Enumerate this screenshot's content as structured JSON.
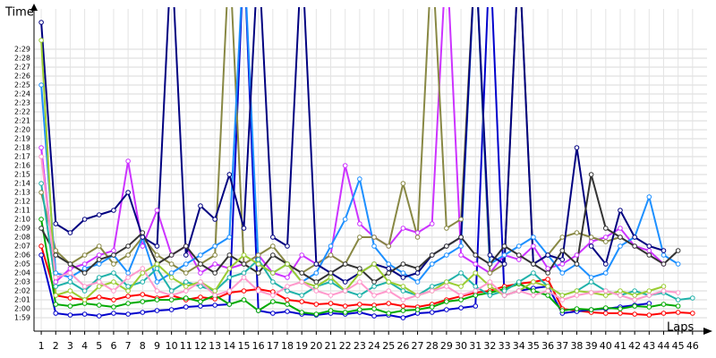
{
  "chart_data": {
    "type": "line",
    "x_label": "Laps",
    "y_label": "Time",
    "grid": true,
    "xlim": [
      0.5,
      47
    ],
    "ylim": [
      117.5,
      153.5
    ],
    "x": [
      1,
      2,
      3,
      4,
      5,
      6,
      7,
      8,
      9,
      10,
      11,
      12,
      13,
      14,
      15,
      16,
      17,
      18,
      19,
      20,
      21,
      22,
      23,
      24,
      25,
      26,
      27,
      28,
      29,
      30,
      31,
      32,
      33,
      34,
      35,
      36,
      37,
      38,
      39,
      40,
      41,
      42,
      43,
      44,
      45,
      46
    ],
    "xticks": [
      1,
      2,
      3,
      4,
      5,
      6,
      7,
      8,
      9,
      10,
      11,
      12,
      13,
      14,
      15,
      16,
      17,
      18,
      19,
      20,
      21,
      22,
      23,
      24,
      25,
      26,
      27,
      28,
      29,
      30,
      31,
      32,
      33,
      34,
      35,
      36,
      37,
      38,
      39,
      40,
      41,
      42,
      43,
      44,
      45,
      46
    ],
    "yticks": [
      {
        "value": 119,
        "label": "1:59"
      },
      {
        "value": 120,
        "label": "2:00"
      },
      {
        "value": 121,
        "label": "2:01"
      },
      {
        "value": 122,
        "label": "2:02"
      },
      {
        "value": 123,
        "label": "2:03"
      },
      {
        "value": 124,
        "label": "2:04"
      },
      {
        "value": 125,
        "label": "2:05"
      },
      {
        "value": 126,
        "label": "2:06"
      },
      {
        "value": 127,
        "label": "2:07"
      },
      {
        "value": 128,
        "label": "2:08"
      },
      {
        "value": 129,
        "label": "2:09"
      },
      {
        "value": 130,
        "label": "2:10"
      },
      {
        "value": 131,
        "label": "2:11"
      },
      {
        "value": 132,
        "label": "2:12"
      },
      {
        "value": 133,
        "label": "2:13"
      },
      {
        "value": 134,
        "label": "2:14"
      },
      {
        "value": 135,
        "label": "2:15"
      },
      {
        "value": 136,
        "label": "2:16"
      },
      {
        "value": 137,
        "label": "2:17"
      },
      {
        "value": 138,
        "label": "2:18"
      },
      {
        "value": 139,
        "label": "2:19"
      },
      {
        "value": 140,
        "label": "2:20"
      },
      {
        "value": 141,
        "label": "2:21"
      },
      {
        "value": 142,
        "label": "2:22"
      },
      {
        "value": 143,
        "label": "2:23"
      },
      {
        "value": 144,
        "label": "2:24"
      },
      {
        "value": 145,
        "label": "2:25"
      },
      {
        "value": 146,
        "label": "2:26"
      },
      {
        "value": 147,
        "label": "2:27"
      },
      {
        "value": 148,
        "label": "2:28"
      },
      {
        "value": 149,
        "label": "2:29"
      }
    ],
    "series": [
      {
        "color": "#ff0000",
        "values": [
          127.0,
          121.5,
          121.2,
          121.0,
          121.3,
          121.0,
          121.4,
          121.6,
          121.2,
          121.5,
          121.0,
          121.3,
          121.1,
          121.8,
          122.0,
          122.2,
          121.9,
          121.0,
          120.8,
          120.5,
          120.6,
          120.3,
          120.5,
          120.4,
          120.6,
          120.3,
          120.2,
          120.5,
          121.0,
          121.4,
          121.8,
          122.0,
          122.5,
          122.8,
          123.0,
          123.3,
          120.0,
          119.8,
          119.6,
          119.5,
          119.5,
          119.4,
          119.3,
          119.5,
          119.6,
          119.5
        ]
      },
      {
        "color": "#0000cc",
        "values": [
          126.0,
          119.5,
          119.3,
          119.4,
          119.2,
          119.5,
          119.4,
          119.6,
          119.8,
          119.9,
          120.2,
          120.3,
          120.4,
          120.5,
          160.0,
          119.8,
          119.5,
          119.7,
          119.4,
          119.3,
          119.5,
          119.4,
          119.6,
          119.2,
          119.3,
          119.0,
          119.5,
          119.6,
          119.9,
          120.1,
          120.3,
          160.0,
          121.5,
          122.0,
          122.3,
          122.5,
          119.5,
          119.7,
          119.9,
          120.0,
          120.2,
          120.4,
          120.6,
          null,
          null,
          null
        ]
      },
      {
        "color": "#00aa00",
        "values": [
          130.0,
          120.5,
          120.3,
          120.6,
          120.4,
          120.2,
          120.6,
          120.8,
          121.0,
          121.0,
          121.2,
          120.8,
          121.5,
          120.5,
          121.0,
          119.8,
          120.8,
          120.5,
          119.6,
          119.4,
          119.8,
          119.6,
          119.9,
          120.0,
          119.5,
          119.8,
          119.9,
          120.2,
          120.8,
          121.0,
          121.5,
          121.8,
          122.2,
          122.8,
          122.0,
          121.5,
          119.8,
          120.0,
          119.9,
          120.1,
          120.0,
          120.3,
          120.2,
          120.5,
          120.3,
          null
        ]
      },
      {
        "color": "#cc33ff",
        "values": [
          138.0,
          123.0,
          124.5,
          125.0,
          126.0,
          126.5,
          136.5,
          127.0,
          131.0,
          126.0,
          127.0,
          124.0,
          125.0,
          124.5,
          125.0,
          126.0,
          124.0,
          123.5,
          126.0,
          125.0,
          126.0,
          136.0,
          129.5,
          128.0,
          127.0,
          129.0,
          128.5,
          129.5,
          160.0,
          126.0,
          125.0,
          124.0,
          126.0,
          125.5,
          127.0,
          124.5,
          125.0,
          126.0,
          127.5,
          128.0,
          129.0,
          127.0,
          126.5,
          125.0,
          null,
          null
        ]
      },
      {
        "color": "#888844",
        "values": [
          133.0,
          126.5,
          125.0,
          126.0,
          127.0,
          125.0,
          126.0,
          128.0,
          126.0,
          125.0,
          124.0,
          125.0,
          126.0,
          160.0,
          125.0,
          126.0,
          127.0,
          125.0,
          124.0,
          125.0,
          126.0,
          125.0,
          128.0,
          128.0,
          127.0,
          134.0,
          128.0,
          160.0,
          129.0,
          130.0,
          160.0,
          124.0,
          125.0,
          160.0,
          125.0,
          126.0,
          128.0,
          128.5,
          128.0,
          127.5,
          128.0,
          null,
          null,
          null,
          null,
          null
        ]
      },
      {
        "color": "#1e90ff",
        "values": [
          145.0,
          124.0,
          123.5,
          124.5,
          125.0,
          126.0,
          124.0,
          128.0,
          123.0,
          124.0,
          125.0,
          126.0,
          127.0,
          128.0,
          160.0,
          125.0,
          124.0,
          125.0,
          123.0,
          124.0,
          127.0,
          130.0,
          134.5,
          127.0,
          125.0,
          124.0,
          123.0,
          125.0,
          126.0,
          127.0,
          160.0,
          125.0,
          126.0,
          127.0,
          128.0,
          126.0,
          124.0,
          125.0,
          123.5,
          124.0,
          127.0,
          128.0,
          132.5,
          126.0,
          125.0,
          null
        ]
      },
      {
        "color": "#000080",
        "values": [
          152.0,
          129.5,
          128.5,
          130.0,
          130.5,
          131.0,
          133.0,
          128.0,
          127.0,
          160.0,
          126.0,
          131.5,
          130.0,
          135.0,
          129.0,
          160.0,
          128.0,
          127.0,
          160.0,
          125.0,
          124.0,
          123.0,
          124.0,
          125.0,
          124.5,
          123.5,
          124.0,
          126.0,
          127.0,
          128.0,
          160.0,
          126.0,
          125.0,
          160.0,
          125.0,
          126.0,
          125.5,
          138.0,
          127.0,
          125.0,
          131.0,
          128.0,
          127.0,
          126.5,
          null,
          null
        ]
      },
      {
        "color": "#333333",
        "values": [
          129.0,
          126.0,
          125.0,
          124.0,
          125.5,
          126.0,
          127.0,
          128.5,
          125.0,
          126.0,
          127.0,
          125.0,
          124.0,
          126.0,
          125.0,
          124.0,
          126.0,
          125.0,
          124.0,
          123.0,
          124.0,
          125.0,
          124.5,
          123.0,
          124.0,
          125.0,
          124.5,
          126.0,
          127.0,
          128.0,
          126.0,
          125.0,
          127.0,
          126.0,
          125.0,
          124.0,
          126.5,
          125.0,
          135.0,
          129.0,
          128.0,
          127.0,
          126.0,
          125.0,
          126.5,
          null
        ]
      },
      {
        "color": "#20b2aa",
        "values": [
          134.0,
          122.5,
          123.0,
          122.0,
          123.5,
          124.0,
          122.5,
          123.0,
          124.5,
          122.0,
          123.0,
          122.5,
          122.0,
          123.5,
          124.0,
          125.5,
          123.0,
          122.0,
          121.5,
          122.5,
          123.0,
          122.0,
          121.5,
          122.5,
          123.0,
          122.0,
          121.5,
          122.5,
          123.0,
          124.0,
          122.5,
          121.5,
          122.0,
          123.0,
          124.0,
          122.5,
          121.5,
          122.0,
          123.0,
          122.0,
          121.5,
          122.0,
          121.5,
          121.8,
          121.0,
          121.2
        ]
      },
      {
        "color": "#9acd32",
        "values": [
          150.0,
          121.5,
          122.0,
          121.0,
          122.5,
          123.0,
          122.0,
          124.0,
          125.0,
          123.5,
          122.5,
          123.0,
          122.0,
          124.5,
          126.0,
          125.0,
          124.0,
          125.0,
          123.0,
          122.5,
          123.5,
          122.0,
          124.0,
          125.0,
          123.0,
          122.5,
          121.5,
          122.0,
          123.0,
          122.5,
          124.0,
          122.5,
          121.5,
          122.0,
          123.0,
          122.5,
          121.5,
          122.0,
          121.8,
          121.5,
          122.0,
          121.5,
          122.0,
          122.5,
          null,
          null
        ]
      },
      {
        "color": "#ff99cc",
        "values": [
          137.0,
          123.5,
          124.0,
          122.5,
          123.0,
          122.0,
          123.5,
          124.5,
          122.0,
          121.5,
          122.0,
          123.0,
          121.5,
          122.0,
          123.5,
          122.0,
          121.5,
          122.5,
          123.0,
          122.0,
          121.5,
          122.0,
          123.0,
          121.5,
          122.0,
          121.0,
          121.5,
          122.0,
          122.5,
          121.5,
          122.0,
          123.0,
          121.5,
          122.0,
          121.5,
          122.0,
          121.0,
          121.5,
          121.8,
          122.0,
          121.5,
          121.0,
          121.5,
          122.0,
          121.8,
          null
        ]
      }
    ]
  }
}
